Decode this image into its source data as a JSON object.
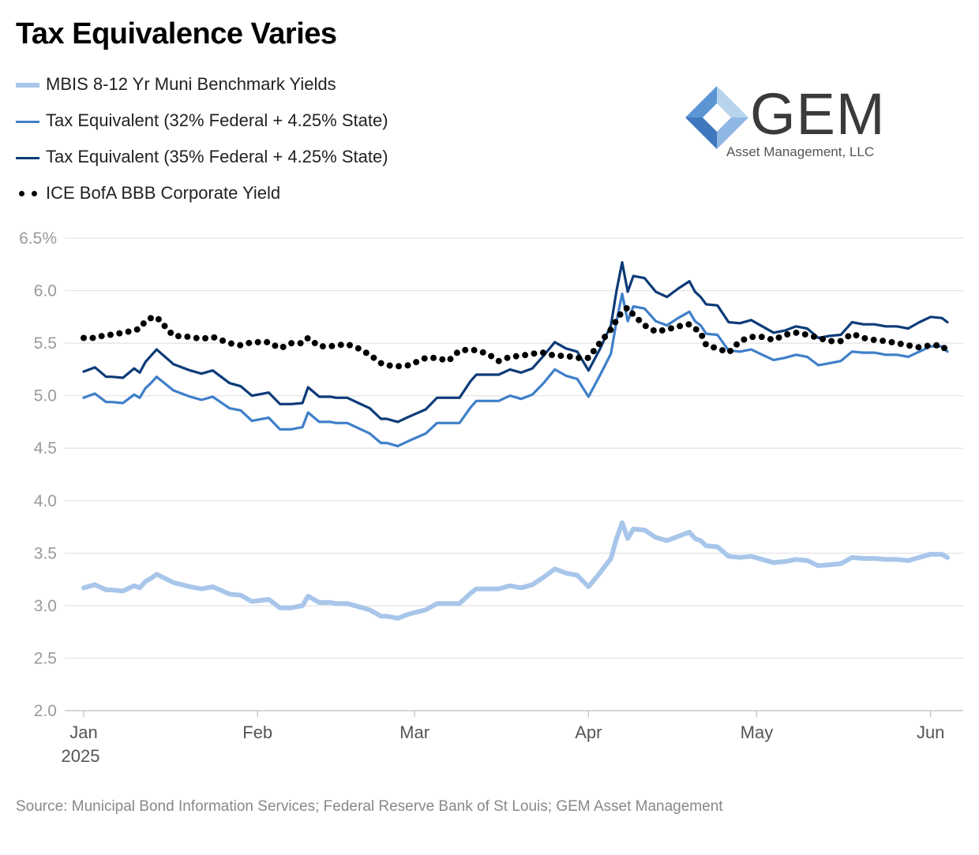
{
  "title": "Tax Equivalence Varies",
  "source": "Source: Municipal Bond Information Services; Federal Reserve Bank of St Louis; GEM Asset Management",
  "logo": {
    "name": "GEM",
    "subtitle": "Asset Management, LLC"
  },
  "chart_data": {
    "type": "line",
    "title": "Tax Equivalence Varies",
    "x_tick_labels": [
      "Jan",
      "Feb",
      "Mar",
      "Apr",
      "May",
      "Jun"
    ],
    "x_tick_dates": [
      "2025-01-01",
      "2025-02-01",
      "2025-03-01",
      "2025-04-01",
      "2025-05-01",
      "2025-06-01"
    ],
    "x_year_label": "2025",
    "y_tick_labels": [
      "2.0",
      "2.5",
      "3.0",
      "3.5",
      "4.0",
      "4.5",
      "5.0",
      "5.5",
      "6.0",
      "6.5%"
    ],
    "ylim": [
      2.0,
      6.5
    ],
    "xlim": [
      "2025-01-01",
      "2025-06-04"
    ],
    "grid": true,
    "legend_position": "top-left",
    "series": [
      {
        "name": "MBIS 8-12 Yr Muni Benchmark Yields",
        "color": "#a8c6ea",
        "style": "solid-thick",
        "x": [
          "2025-01-01",
          "2025-01-03",
          "2025-01-05",
          "2025-01-06",
          "2025-01-08",
          "2025-01-10",
          "2025-01-11",
          "2025-01-12",
          "2025-01-13",
          "2025-01-14",
          "2025-01-17",
          "2025-01-20",
          "2025-01-22",
          "2025-01-24",
          "2025-01-27",
          "2025-01-29",
          "2025-01-31",
          "2025-02-03",
          "2025-02-05",
          "2025-02-07",
          "2025-02-09",
          "2025-02-10",
          "2025-02-12",
          "2025-02-14",
          "2025-02-15",
          "2025-02-17",
          "2025-02-19",
          "2025-02-21",
          "2025-02-23",
          "2025-02-24",
          "2025-02-26",
          "2025-02-28",
          "2025-03-03",
          "2025-03-05",
          "2025-03-07",
          "2025-03-09",
          "2025-03-11",
          "2025-03-12",
          "2025-03-14",
          "2025-03-16",
          "2025-03-18",
          "2025-03-20",
          "2025-03-22",
          "2025-03-24",
          "2025-03-26",
          "2025-03-28",
          "2025-03-30",
          "2025-04-01",
          "2025-04-03",
          "2025-04-05",
          "2025-04-06",
          "2025-04-07",
          "2025-04-08",
          "2025-04-09",
          "2025-04-11",
          "2025-04-13",
          "2025-04-15",
          "2025-04-17",
          "2025-04-19",
          "2025-04-20",
          "2025-04-21",
          "2025-04-22",
          "2025-04-24",
          "2025-04-26",
          "2025-04-28",
          "2025-04-30",
          "2025-05-02",
          "2025-05-04",
          "2025-05-06",
          "2025-05-08",
          "2025-05-10",
          "2025-05-12",
          "2025-05-14",
          "2025-05-16",
          "2025-05-18",
          "2025-05-20",
          "2025-05-22",
          "2025-05-24",
          "2025-05-26",
          "2025-05-28",
          "2025-05-30",
          "2025-06-01",
          "2025-06-03",
          "2025-06-04"
        ],
        "values": [
          3.17,
          3.2,
          3.15,
          3.15,
          3.14,
          3.19,
          3.17,
          3.23,
          3.26,
          3.3,
          3.22,
          3.18,
          3.16,
          3.18,
          3.11,
          3.1,
          3.04,
          3.06,
          2.98,
          2.98,
          3.0,
          3.09,
          3.03,
          3.03,
          3.02,
          3.02,
          2.99,
          2.96,
          2.9,
          2.9,
          2.88,
          2.92,
          2.96,
          3.02,
          3.02,
          3.02,
          3.12,
          3.16,
          3.16,
          3.16,
          3.19,
          3.17,
          3.2,
          3.27,
          3.35,
          3.31,
          3.29,
          3.18,
          3.31,
          3.45,
          3.64,
          3.79,
          3.64,
          3.73,
          3.72,
          3.65,
          3.62,
          3.66,
          3.7,
          3.64,
          3.62,
          3.57,
          3.56,
          3.47,
          3.46,
          3.47,
          3.44,
          3.41,
          3.42,
          3.44,
          3.43,
          3.38,
          3.39,
          3.4,
          3.46,
          3.45,
          3.45,
          3.44,
          3.44,
          3.43,
          3.46,
          3.49,
          3.49,
          3.46
        ]
      },
      {
        "name": "Tax Equivalent (32% Federal + 4.25% State)",
        "color": "#3f7fc9",
        "style": "solid",
        "x": [
          "2025-01-01",
          "2025-01-03",
          "2025-01-05",
          "2025-01-06",
          "2025-01-08",
          "2025-01-10",
          "2025-01-11",
          "2025-01-12",
          "2025-01-13",
          "2025-01-14",
          "2025-01-17",
          "2025-01-20",
          "2025-01-22",
          "2025-01-24",
          "2025-01-27",
          "2025-01-29",
          "2025-01-31",
          "2025-02-03",
          "2025-02-05",
          "2025-02-07",
          "2025-02-09",
          "2025-02-10",
          "2025-02-12",
          "2025-02-14",
          "2025-02-15",
          "2025-02-17",
          "2025-02-19",
          "2025-02-21",
          "2025-02-23",
          "2025-02-24",
          "2025-02-26",
          "2025-02-28",
          "2025-03-03",
          "2025-03-05",
          "2025-03-07",
          "2025-03-09",
          "2025-03-11",
          "2025-03-12",
          "2025-03-14",
          "2025-03-16",
          "2025-03-18",
          "2025-03-20",
          "2025-03-22",
          "2025-03-24",
          "2025-03-26",
          "2025-03-28",
          "2025-03-30",
          "2025-04-01",
          "2025-04-03",
          "2025-04-05",
          "2025-04-06",
          "2025-04-07",
          "2025-04-08",
          "2025-04-09",
          "2025-04-11",
          "2025-04-13",
          "2025-04-15",
          "2025-04-17",
          "2025-04-19",
          "2025-04-20",
          "2025-04-21",
          "2025-04-22",
          "2025-04-24",
          "2025-04-26",
          "2025-04-28",
          "2025-04-30",
          "2025-05-02",
          "2025-05-04",
          "2025-05-06",
          "2025-05-08",
          "2025-05-10",
          "2025-05-12",
          "2025-05-14",
          "2025-05-16",
          "2025-05-18",
          "2025-05-20",
          "2025-05-22",
          "2025-05-24",
          "2025-05-26",
          "2025-05-28",
          "2025-05-30",
          "2025-06-01",
          "2025-06-03",
          "2025-06-04"
        ],
        "values": [
          4.98,
          5.02,
          4.94,
          4.94,
          4.93,
          5.01,
          4.98,
          5.07,
          5.12,
          5.18,
          5.05,
          4.99,
          4.96,
          4.99,
          4.88,
          4.86,
          4.76,
          4.79,
          4.68,
          4.68,
          4.7,
          4.84,
          4.75,
          4.75,
          4.74,
          4.74,
          4.69,
          4.64,
          4.55,
          4.55,
          4.52,
          4.57,
          4.64,
          4.74,
          4.74,
          4.74,
          4.89,
          4.95,
          4.95,
          4.95,
          5.0,
          4.97,
          5.01,
          5.12,
          5.25,
          5.19,
          5.16,
          4.99,
          5.19,
          5.4,
          5.71,
          5.97,
          5.71,
          5.85,
          5.83,
          5.71,
          5.67,
          5.74,
          5.8,
          5.71,
          5.67,
          5.59,
          5.58,
          5.43,
          5.42,
          5.44,
          5.39,
          5.34,
          5.36,
          5.39,
          5.37,
          5.29,
          5.31,
          5.33,
          5.42,
          5.41,
          5.41,
          5.39,
          5.39,
          5.37,
          5.42,
          5.47,
          5.47,
          5.42
        ]
      },
      {
        "name": "Tax Equivalent (35% Federal + 4.25% State)",
        "color": "#0d3b78",
        "style": "solid",
        "x": [
          "2025-01-01",
          "2025-01-03",
          "2025-01-05",
          "2025-01-06",
          "2025-01-08",
          "2025-01-10",
          "2025-01-11",
          "2025-01-12",
          "2025-01-13",
          "2025-01-14",
          "2025-01-17",
          "2025-01-20",
          "2025-01-22",
          "2025-01-24",
          "2025-01-27",
          "2025-01-29",
          "2025-01-31",
          "2025-02-03",
          "2025-02-05",
          "2025-02-07",
          "2025-02-09",
          "2025-02-10",
          "2025-02-12",
          "2025-02-14",
          "2025-02-15",
          "2025-02-17",
          "2025-02-19",
          "2025-02-21",
          "2025-02-23",
          "2025-02-24",
          "2025-02-26",
          "2025-02-28",
          "2025-03-03",
          "2025-03-05",
          "2025-03-07",
          "2025-03-09",
          "2025-03-11",
          "2025-03-12",
          "2025-03-14",
          "2025-03-16",
          "2025-03-18",
          "2025-03-20",
          "2025-03-22",
          "2025-03-24",
          "2025-03-26",
          "2025-03-28",
          "2025-03-30",
          "2025-04-01",
          "2025-04-03",
          "2025-04-05",
          "2025-04-06",
          "2025-04-07",
          "2025-04-08",
          "2025-04-09",
          "2025-04-11",
          "2025-04-13",
          "2025-04-15",
          "2025-04-17",
          "2025-04-19",
          "2025-04-20",
          "2025-04-21",
          "2025-04-22",
          "2025-04-24",
          "2025-04-26",
          "2025-04-28",
          "2025-04-30",
          "2025-05-02",
          "2025-05-04",
          "2025-05-06",
          "2025-05-08",
          "2025-05-10",
          "2025-05-12",
          "2025-05-14",
          "2025-05-16",
          "2025-05-18",
          "2025-05-20",
          "2025-05-22",
          "2025-05-24",
          "2025-05-26",
          "2025-05-28",
          "2025-05-30",
          "2025-06-01",
          "2025-06-03",
          "2025-06-04"
        ],
        "values": [
          5.23,
          5.27,
          5.18,
          5.18,
          5.17,
          5.26,
          5.22,
          5.32,
          5.38,
          5.44,
          5.3,
          5.24,
          5.21,
          5.24,
          5.12,
          5.09,
          5.0,
          5.03,
          4.92,
          4.92,
          4.93,
          5.08,
          4.99,
          4.99,
          4.98,
          4.98,
          4.93,
          4.88,
          4.78,
          4.78,
          4.75,
          4.8,
          4.87,
          4.98,
          4.98,
          4.98,
          5.14,
          5.2,
          5.2,
          5.2,
          5.25,
          5.22,
          5.26,
          5.38,
          5.51,
          5.45,
          5.42,
          5.24,
          5.44,
          5.67,
          6.0,
          6.27,
          5.99,
          6.14,
          6.12,
          5.99,
          5.94,
          6.02,
          6.09,
          5.99,
          5.94,
          5.87,
          5.86,
          5.7,
          5.69,
          5.72,
          5.66,
          5.6,
          5.62,
          5.66,
          5.64,
          5.55,
          5.57,
          5.58,
          5.7,
          5.68,
          5.68,
          5.66,
          5.66,
          5.64,
          5.7,
          5.75,
          5.74,
          5.7
        ]
      },
      {
        "name": "ICE BofA BBB Corporate Yield",
        "color": "#000000",
        "style": "dotted",
        "x": [
          "2025-01-01",
          "2025-01-03",
          "2025-01-05",
          "2025-01-06",
          "2025-01-08",
          "2025-01-10",
          "2025-01-11",
          "2025-01-12",
          "2025-01-13",
          "2025-01-14",
          "2025-01-17",
          "2025-01-20",
          "2025-01-22",
          "2025-01-24",
          "2025-01-27",
          "2025-01-29",
          "2025-01-31",
          "2025-02-03",
          "2025-02-05",
          "2025-02-07",
          "2025-02-09",
          "2025-02-10",
          "2025-02-12",
          "2025-02-14",
          "2025-02-15",
          "2025-02-17",
          "2025-02-19",
          "2025-02-21",
          "2025-02-23",
          "2025-02-24",
          "2025-02-26",
          "2025-02-28",
          "2025-03-03",
          "2025-03-05",
          "2025-03-07",
          "2025-03-09",
          "2025-03-11",
          "2025-03-12",
          "2025-03-14",
          "2025-03-16",
          "2025-03-18",
          "2025-03-20",
          "2025-03-22",
          "2025-03-24",
          "2025-03-26",
          "2025-03-28",
          "2025-03-30",
          "2025-04-01",
          "2025-04-03",
          "2025-04-05",
          "2025-04-06",
          "2025-04-07",
          "2025-04-08",
          "2025-04-09",
          "2025-04-11",
          "2025-04-13",
          "2025-04-15",
          "2025-04-17",
          "2025-04-19",
          "2025-04-20",
          "2025-04-21",
          "2025-04-22",
          "2025-04-24",
          "2025-04-26",
          "2025-04-28",
          "2025-04-30",
          "2025-05-02",
          "2025-05-04",
          "2025-05-06",
          "2025-05-08",
          "2025-05-10",
          "2025-05-12",
          "2025-05-14",
          "2025-05-16",
          "2025-05-18",
          "2025-05-20",
          "2025-05-22",
          "2025-05-24",
          "2025-05-26",
          "2025-05-28",
          "2025-05-30",
          "2025-06-01",
          "2025-06-03",
          "2025-06-04"
        ],
        "values": [
          5.55,
          5.55,
          5.58,
          5.58,
          5.6,
          5.62,
          5.64,
          5.71,
          5.74,
          5.75,
          5.57,
          5.56,
          5.54,
          5.56,
          5.5,
          5.48,
          5.51,
          5.51,
          5.45,
          5.5,
          5.5,
          5.55,
          5.47,
          5.47,
          5.48,
          5.49,
          5.45,
          5.39,
          5.31,
          5.29,
          5.28,
          5.29,
          5.36,
          5.36,
          5.33,
          5.43,
          5.44,
          5.43,
          5.4,
          5.33,
          5.37,
          5.38,
          5.4,
          5.41,
          5.38,
          5.38,
          5.36,
          5.36,
          5.5,
          5.63,
          5.72,
          5.8,
          5.84,
          5.77,
          5.67,
          5.61,
          5.63,
          5.66,
          5.68,
          5.64,
          5.6,
          5.48,
          5.45,
          5.41,
          5.52,
          5.56,
          5.56,
          5.53,
          5.58,
          5.6,
          5.58,
          5.55,
          5.52,
          5.52,
          5.59,
          5.55,
          5.53,
          5.52,
          5.5,
          5.48,
          5.46,
          5.48,
          5.48,
          5.42
        ]
      }
    ]
  }
}
